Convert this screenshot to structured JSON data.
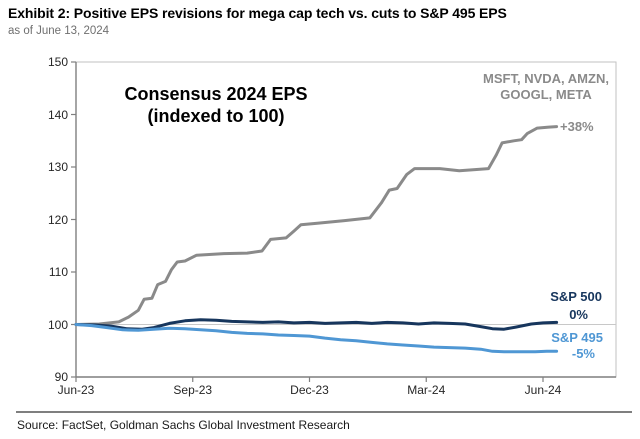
{
  "header": {
    "title": "Exhibit 2: Positive EPS revisions for mega cap tech vs. cuts to S&P 495 EPS",
    "subtitle": "as of June 13, 2024"
  },
  "footer": {
    "source": "Source: FactSet, Goldman Sachs Global Investment Research"
  },
  "colors": {
    "mega_cap_gray": "#8a8a8a",
    "sp500_navy": "#17365d",
    "sp495_blue": "#4f97d4",
    "axis": "#7f7f7f",
    "plot_border": "#c2c2c2",
    "gridline_100": "#c8c8c8",
    "tick_label": "#262626",
    "separator": "#7f7f7f",
    "title_text": "#000000",
    "subtitle_text": "#6f6f6f"
  },
  "chart_data": {
    "type": "line",
    "title": "Consensus 2024 EPS (indexed to 100)",
    "title_line1": "Consensus 2024 EPS",
    "title_line2": "(indexed to 100)",
    "x_axis": {
      "tick_labels": [
        "Jun-23",
        "Sep-23",
        "Dec-23",
        "Mar-24",
        "Jun-24"
      ],
      "tick_positions_months": [
        0,
        3,
        6,
        9,
        12
      ],
      "range_months": [
        0,
        13.9
      ]
    },
    "y_axis": {
      "ticks": [
        90,
        100,
        110,
        120,
        130,
        140,
        150
      ],
      "range": [
        90,
        150
      ],
      "baseline_gridline": 100
    },
    "legend_position": "end-of-line labels inside plot, right side",
    "grid": "only index baseline at 100",
    "series": [
      {
        "name": "MSFT, NVDA, AMZN, GOOGL, META",
        "label_lines": [
          "MSFT, NVDA, AMZN,",
          "GOOGL, META"
        ],
        "end_label": "+38%",
        "color_key": "mega_cap_gray",
        "points": [
          [
            0,
            100
          ],
          [
            0.6,
            100.1
          ],
          [
            1.1,
            100.5
          ],
          [
            1.35,
            101.4
          ],
          [
            1.6,
            102.7
          ],
          [
            1.75,
            104.8
          ],
          [
            1.95,
            105.0
          ],
          [
            2.1,
            107.6
          ],
          [
            2.3,
            108.2
          ],
          [
            2.45,
            110.4
          ],
          [
            2.6,
            111.9
          ],
          [
            2.8,
            112.1
          ],
          [
            3.1,
            113.2
          ],
          [
            3.8,
            113.5
          ],
          [
            4.4,
            113.6
          ],
          [
            4.78,
            114.0
          ],
          [
            5.0,
            116.2
          ],
          [
            5.4,
            116.5
          ],
          [
            5.6,
            117.8
          ],
          [
            5.78,
            119.0
          ],
          [
            6.2,
            119.3
          ],
          [
            6.9,
            119.8
          ],
          [
            7.55,
            120.3
          ],
          [
            7.85,
            123.2
          ],
          [
            8.05,
            125.6
          ],
          [
            8.25,
            125.9
          ],
          [
            8.5,
            128.6
          ],
          [
            8.7,
            129.7
          ],
          [
            9.35,
            129.7
          ],
          [
            9.85,
            129.3
          ],
          [
            10.25,
            129.5
          ],
          [
            10.6,
            129.7
          ],
          [
            10.8,
            132.3
          ],
          [
            10.95,
            134.6
          ],
          [
            11.25,
            135.0
          ],
          [
            11.45,
            135.2
          ],
          [
            11.6,
            136.4
          ],
          [
            11.85,
            137.4
          ],
          [
            12.15,
            137.6
          ],
          [
            12.35,
            137.7
          ]
        ]
      },
      {
        "name": "S&P 500",
        "label_lines": [
          "S&P 500"
        ],
        "end_label": "0%",
        "color_key": "sp500_navy",
        "points": [
          [
            0,
            100
          ],
          [
            0.5,
            99.9
          ],
          [
            0.9,
            99.7
          ],
          [
            1.3,
            99.2
          ],
          [
            1.7,
            99.1
          ],
          [
            2.0,
            99.4
          ],
          [
            2.4,
            100.2
          ],
          [
            2.8,
            100.7
          ],
          [
            3.2,
            100.9
          ],
          [
            3.6,
            100.8
          ],
          [
            4.0,
            100.6
          ],
          [
            4.4,
            100.5
          ],
          [
            4.8,
            100.4
          ],
          [
            5.2,
            100.5
          ],
          [
            5.6,
            100.3
          ],
          [
            6.0,
            100.4
          ],
          [
            6.4,
            100.2
          ],
          [
            6.8,
            100.3
          ],
          [
            7.2,
            100.4
          ],
          [
            7.6,
            100.2
          ],
          [
            8.0,
            100.4
          ],
          [
            8.4,
            100.3
          ],
          [
            8.8,
            100.1
          ],
          [
            9.2,
            100.3
          ],
          [
            9.6,
            100.2
          ],
          [
            10.0,
            100.1
          ],
          [
            10.4,
            99.6
          ],
          [
            10.7,
            99.2
          ],
          [
            11.0,
            99.1
          ],
          [
            11.3,
            99.5
          ],
          [
            11.7,
            100.1
          ],
          [
            12.0,
            100.3
          ],
          [
            12.35,
            100.4
          ]
        ]
      },
      {
        "name": "S&P 495",
        "label_lines": [
          "S&P 495"
        ],
        "end_label": "-5%",
        "color_key": "sp495_blue",
        "points": [
          [
            0,
            100
          ],
          [
            0.4,
            99.8
          ],
          [
            0.8,
            99.4
          ],
          [
            1.2,
            99.0
          ],
          [
            1.6,
            98.9
          ],
          [
            2.0,
            99.1
          ],
          [
            2.4,
            99.3
          ],
          [
            2.8,
            99.2
          ],
          [
            3.2,
            99.0
          ],
          [
            3.6,
            98.8
          ],
          [
            4.0,
            98.5
          ],
          [
            4.4,
            98.3
          ],
          [
            4.8,
            98.2
          ],
          [
            5.2,
            98.0
          ],
          [
            5.6,
            97.9
          ],
          [
            6.0,
            97.8
          ],
          [
            6.4,
            97.4
          ],
          [
            6.8,
            97.1
          ],
          [
            7.2,
            96.9
          ],
          [
            7.6,
            96.6
          ],
          [
            8.0,
            96.3
          ],
          [
            8.4,
            96.1
          ],
          [
            8.8,
            95.9
          ],
          [
            9.2,
            95.7
          ],
          [
            9.6,
            95.6
          ],
          [
            10.0,
            95.5
          ],
          [
            10.4,
            95.3
          ],
          [
            10.7,
            94.9
          ],
          [
            11.0,
            94.8
          ],
          [
            11.4,
            94.8
          ],
          [
            11.8,
            94.8
          ],
          [
            12.1,
            94.9
          ],
          [
            12.35,
            94.9
          ]
        ]
      }
    ]
  }
}
